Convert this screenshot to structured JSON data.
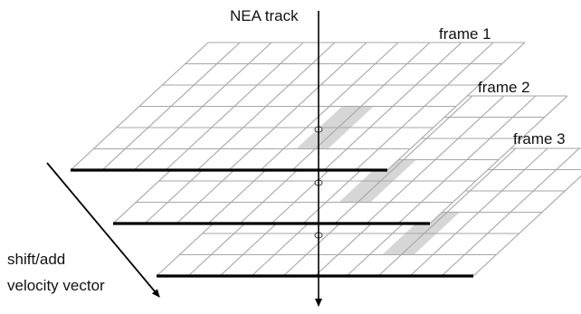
{
  "labels": {
    "track": "NEA track",
    "frame_1": "frame 1",
    "frame_2": "frame 2",
    "frame_3": "frame 3",
    "vector_line1": "shift/add",
    "vector_line2": "velocity vector"
  },
  "diagram": {
    "grid_columns": 10,
    "grid_rows": 6,
    "frame_count": 3,
    "grid_line_color": "#a6a6a6",
    "inner_line_color": "#8c8c8c",
    "highlight_color": "#d6d6d6",
    "front_edge_color": "#000000",
    "arrow_color": "#000000"
  }
}
